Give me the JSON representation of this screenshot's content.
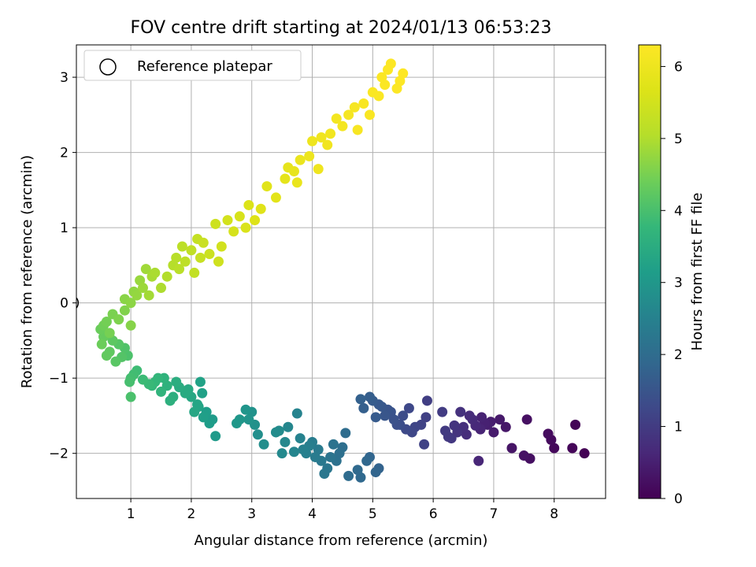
{
  "chart_data": {
    "type": "scatter",
    "title": "FOV centre drift starting at 2024/01/13 06:53:23",
    "xlabel": "Angular distance from reference (arcmin)",
    "ylabel": "Rotation from reference (arcmin)",
    "xlim": [
      0.1,
      8.85
    ],
    "ylim": [
      -2.6,
      3.43
    ],
    "xticks": [
      1,
      2,
      3,
      4,
      5,
      6,
      7,
      8
    ],
    "yticks": [
      -2,
      -1,
      0,
      1,
      2,
      3
    ],
    "grid": true,
    "legend": {
      "position": "top-left",
      "entries": [
        {
          "label": "Reference platepar",
          "marker": "open-circle"
        }
      ]
    },
    "colorbar": {
      "label": "Hours from first FF file",
      "range": [
        0,
        6.3
      ],
      "ticks": [
        0,
        1,
        2,
        3,
        4,
        5,
        6
      ],
      "colormap": "viridis"
    },
    "reference_point": {
      "x": 0.0,
      "y": 0.0
    },
    "points": [
      [
        8.5,
        -2.0,
        0.02
      ],
      [
        8.35,
        -1.62,
        0.05
      ],
      [
        8.3,
        -1.93,
        0.08
      ],
      [
        8.0,
        -1.93,
        0.12
      ],
      [
        7.95,
        -1.82,
        0.15
      ],
      [
        7.9,
        -1.74,
        0.18
      ],
      [
        7.6,
        -2.07,
        0.22
      ],
      [
        7.55,
        -1.55,
        0.25
      ],
      [
        7.5,
        -2.03,
        0.28
      ],
      [
        7.3,
        -1.93,
        0.32
      ],
      [
        7.2,
        -1.65,
        0.35
      ],
      [
        7.1,
        -1.55,
        0.38
      ],
      [
        7.0,
        -1.72,
        0.42
      ],
      [
        6.95,
        -1.58,
        0.45
      ],
      [
        6.9,
        -1.62,
        0.48
      ],
      [
        6.85,
        -1.6,
        0.52
      ],
      [
        6.8,
        -1.52,
        0.55
      ],
      [
        6.78,
        -1.68,
        0.58
      ],
      [
        6.75,
        -2.1,
        0.62
      ],
      [
        6.7,
        -1.63,
        0.65
      ],
      [
        6.65,
        -1.55,
        0.68
      ],
      [
        6.6,
        -1.5,
        0.72
      ],
      [
        6.55,
        -1.75,
        0.75
      ],
      [
        6.5,
        -1.65,
        0.78
      ],
      [
        6.45,
        -1.45,
        0.82
      ],
      [
        6.4,
        -1.72,
        0.85
      ],
      [
        6.35,
        -1.63,
        0.88
      ],
      [
        6.3,
        -1.8,
        0.92
      ],
      [
        6.25,
        -1.78,
        0.95
      ],
      [
        6.2,
        -1.7,
        0.98
      ],
      [
        6.15,
        -1.45,
        1.02
      ],
      [
        5.9,
        -1.3,
        1.05
      ],
      [
        5.88,
        -1.52,
        1.08
      ],
      [
        5.85,
        -1.88,
        1.12
      ],
      [
        5.8,
        -1.62,
        1.15
      ],
      [
        5.7,
        -1.65,
        1.18
      ],
      [
        5.65,
        -1.72,
        1.22
      ],
      [
        5.6,
        -1.4,
        1.25
      ],
      [
        5.55,
        -1.68,
        1.28
      ],
      [
        5.5,
        -1.5,
        1.32
      ],
      [
        5.45,
        -1.62,
        1.35
      ],
      [
        5.4,
        -1.62,
        1.38
      ],
      [
        5.35,
        -1.55,
        1.42
      ],
      [
        5.3,
        -1.45,
        1.45
      ],
      [
        5.25,
        -1.42,
        1.48
      ],
      [
        5.2,
        -1.5,
        1.52
      ],
      [
        5.15,
        -1.38,
        1.55
      ],
      [
        5.1,
        -1.35,
        1.58
      ],
      [
        5.05,
        -1.52,
        1.62
      ],
      [
        5.0,
        -1.3,
        1.65
      ],
      [
        4.95,
        -1.25,
        1.68
      ],
      [
        4.85,
        -1.4,
        1.72
      ],
      [
        4.8,
        -1.28,
        1.75
      ],
      [
        5.1,
        -2.2,
        1.78
      ],
      [
        5.05,
        -2.25,
        1.82
      ],
      [
        4.95,
        -2.05,
        1.85
      ],
      [
        4.9,
        -2.1,
        1.88
      ],
      [
        4.8,
        -2.32,
        1.92
      ],
      [
        4.75,
        -2.22,
        1.95
      ],
      [
        4.6,
        -2.3,
        1.98
      ],
      [
        4.55,
        -1.73,
        2.02
      ],
      [
        4.5,
        -1.92,
        2.05
      ],
      [
        4.45,
        -2.0,
        2.08
      ],
      [
        4.4,
        -2.1,
        2.12
      ],
      [
        4.35,
        -1.88,
        2.15
      ],
      [
        4.3,
        -2.05,
        2.18
      ],
      [
        4.25,
        -2.2,
        2.22
      ],
      [
        4.2,
        -2.27,
        2.25
      ],
      [
        4.15,
        -2.1,
        2.28
      ],
      [
        4.1,
        -1.95,
        2.32
      ],
      [
        4.05,
        -2.05,
        2.35
      ],
      [
        4.0,
        -1.85,
        2.38
      ],
      [
        3.95,
        -1.9,
        2.42
      ],
      [
        3.9,
        -2.0,
        2.45
      ],
      [
        3.85,
        -1.95,
        2.48
      ],
      [
        3.8,
        -1.8,
        2.52
      ],
      [
        3.75,
        -1.47,
        2.55
      ],
      [
        3.7,
        -1.98,
        2.58
      ],
      [
        3.6,
        -1.65,
        2.62
      ],
      [
        3.55,
        -1.85,
        2.65
      ],
      [
        3.5,
        -2.0,
        2.68
      ],
      [
        3.45,
        -1.7,
        2.72
      ],
      [
        3.4,
        -1.72,
        2.75
      ],
      [
        3.2,
        -1.88,
        2.78
      ],
      [
        3.1,
        -1.75,
        2.82
      ],
      [
        3.05,
        -1.62,
        2.85
      ],
      [
        3.0,
        -1.45,
        2.88
      ],
      [
        2.95,
        -1.55,
        2.92
      ],
      [
        2.9,
        -1.42,
        2.95
      ],
      [
        2.8,
        -1.55,
        2.98
      ],
      [
        2.75,
        -1.6,
        3.02
      ],
      [
        2.4,
        -1.77,
        3.05
      ],
      [
        2.35,
        -1.55,
        3.08
      ],
      [
        2.3,
        -1.6,
        3.12
      ],
      [
        2.25,
        -1.45,
        3.15
      ],
      [
        2.2,
        -1.52,
        3.18
      ],
      [
        2.18,
        -1.2,
        3.22
      ],
      [
        2.15,
        -1.05,
        3.25
      ],
      [
        2.12,
        -1.38,
        3.28
      ],
      [
        2.1,
        -1.35,
        3.32
      ],
      [
        2.05,
        -1.45,
        3.35
      ],
      [
        2.0,
        -1.25,
        3.38
      ],
      [
        1.95,
        -1.15,
        3.42
      ],
      [
        1.9,
        -1.2,
        3.45
      ],
      [
        1.8,
        -1.12,
        3.48
      ],
      [
        1.75,
        -1.05,
        3.52
      ],
      [
        1.7,
        -1.25,
        3.55
      ],
      [
        1.65,
        -1.3,
        3.58
      ],
      [
        1.6,
        -1.1,
        3.62
      ],
      [
        1.55,
        -1.0,
        3.65
      ],
      [
        1.5,
        -1.18,
        3.68
      ],
      [
        1.45,
        -1.0,
        3.72
      ],
      [
        1.4,
        -1.05,
        3.75
      ],
      [
        1.35,
        -1.1,
        3.78
      ],
      [
        1.3,
        -1.08,
        3.82
      ],
      [
        1.2,
        -1.02,
        3.85
      ],
      [
        1.1,
        -0.9,
        3.88
      ],
      [
        1.05,
        -0.95,
        3.92
      ],
      [
        1.0,
        -1.0,
        3.95
      ],
      [
        0.98,
        -1.05,
        3.98
      ],
      [
        1.0,
        -1.25,
        4.02
      ],
      [
        0.95,
        -0.7,
        4.05
      ],
      [
        0.9,
        -0.6,
        4.08
      ],
      [
        0.85,
        -0.72,
        4.12
      ],
      [
        0.8,
        -0.55,
        4.15
      ],
      [
        0.75,
        -0.78,
        4.18
      ],
      [
        0.7,
        -0.5,
        4.22
      ],
      [
        0.65,
        -0.65,
        4.25
      ],
      [
        0.6,
        -0.7,
        4.28
      ],
      [
        0.55,
        -0.45,
        4.32
      ],
      [
        0.5,
        -0.35,
        4.35
      ],
      [
        0.52,
        -0.55,
        4.38
      ],
      [
        0.55,
        -0.3,
        4.42
      ],
      [
        0.6,
        -0.25,
        4.45
      ],
      [
        0.65,
        -0.4,
        4.48
      ],
      [
        0.7,
        -0.15,
        4.52
      ],
      [
        0.8,
        -0.22,
        4.55
      ],
      [
        0.9,
        -0.1,
        4.58
      ],
      [
        1.0,
        -0.3,
        4.62
      ],
      [
        0.9,
        0.05,
        4.65
      ],
      [
        1.0,
        0.0,
        4.68
      ],
      [
        1.05,
        0.15,
        4.72
      ],
      [
        1.1,
        0.1,
        4.75
      ],
      [
        1.15,
        0.3,
        4.78
      ],
      [
        1.2,
        0.2,
        4.82
      ],
      [
        1.25,
        0.45,
        4.85
      ],
      [
        1.3,
        0.1,
        4.88
      ],
      [
        1.35,
        0.35,
        4.92
      ],
      [
        1.4,
        0.4,
        4.95
      ],
      [
        1.5,
        0.2,
        4.98
      ],
      [
        1.6,
        0.35,
        5.02
      ],
      [
        1.7,
        0.5,
        5.05
      ],
      [
        1.75,
        0.6,
        5.08
      ],
      [
        1.8,
        0.45,
        5.12
      ],
      [
        1.85,
        0.75,
        5.15
      ],
      [
        1.9,
        0.55,
        5.18
      ],
      [
        2.0,
        0.7,
        5.22
      ],
      [
        2.05,
        0.4,
        5.25
      ],
      [
        2.1,
        0.85,
        5.28
      ],
      [
        2.15,
        0.6,
        5.32
      ],
      [
        2.2,
        0.8,
        5.35
      ],
      [
        2.3,
        0.65,
        5.38
      ],
      [
        2.4,
        1.05,
        5.42
      ],
      [
        2.45,
        0.55,
        5.45
      ],
      [
        2.5,
        0.75,
        5.48
      ],
      [
        2.6,
        1.1,
        5.52
      ],
      [
        2.7,
        0.95,
        5.55
      ],
      [
        2.8,
        1.15,
        5.58
      ],
      [
        2.9,
        1.0,
        5.62
      ],
      [
        2.95,
        1.3,
        5.65
      ],
      [
        3.05,
        1.1,
        5.68
      ],
      [
        3.15,
        1.25,
        5.72
      ],
      [
        3.25,
        1.55,
        5.75
      ],
      [
        3.4,
        1.4,
        5.78
      ],
      [
        3.55,
        1.65,
        5.82
      ],
      [
        3.6,
        1.8,
        5.85
      ],
      [
        3.7,
        1.75,
        5.88
      ],
      [
        3.75,
        1.6,
        5.92
      ],
      [
        3.8,
        1.9,
        5.95
      ],
      [
        3.95,
        1.95,
        5.98
      ],
      [
        4.0,
        2.15,
        6.0
      ],
      [
        4.1,
        1.78,
        6.02
      ],
      [
        4.15,
        2.2,
        6.04
      ],
      [
        4.25,
        2.1,
        6.06
      ],
      [
        4.3,
        2.25,
        6.08
      ],
      [
        4.4,
        2.45,
        6.1
      ],
      [
        4.5,
        2.35,
        6.12
      ],
      [
        4.6,
        2.5,
        6.14
      ],
      [
        4.7,
        2.6,
        6.16
      ],
      [
        4.75,
        2.3,
        6.18
      ],
      [
        4.85,
        2.65,
        6.2
      ],
      [
        4.95,
        2.5,
        6.22
      ],
      [
        5.0,
        2.8,
        6.24
      ],
      [
        5.1,
        2.75,
        6.25
      ],
      [
        5.15,
        3.0,
        6.26
      ],
      [
        5.2,
        2.9,
        6.27
      ],
      [
        5.25,
        3.1,
        6.28
      ],
      [
        5.3,
        3.18,
        6.29
      ],
      [
        5.4,
        2.85,
        6.29
      ],
      [
        5.45,
        2.95,
        6.29
      ],
      [
        5.5,
        3.05,
        6.3
      ]
    ]
  }
}
